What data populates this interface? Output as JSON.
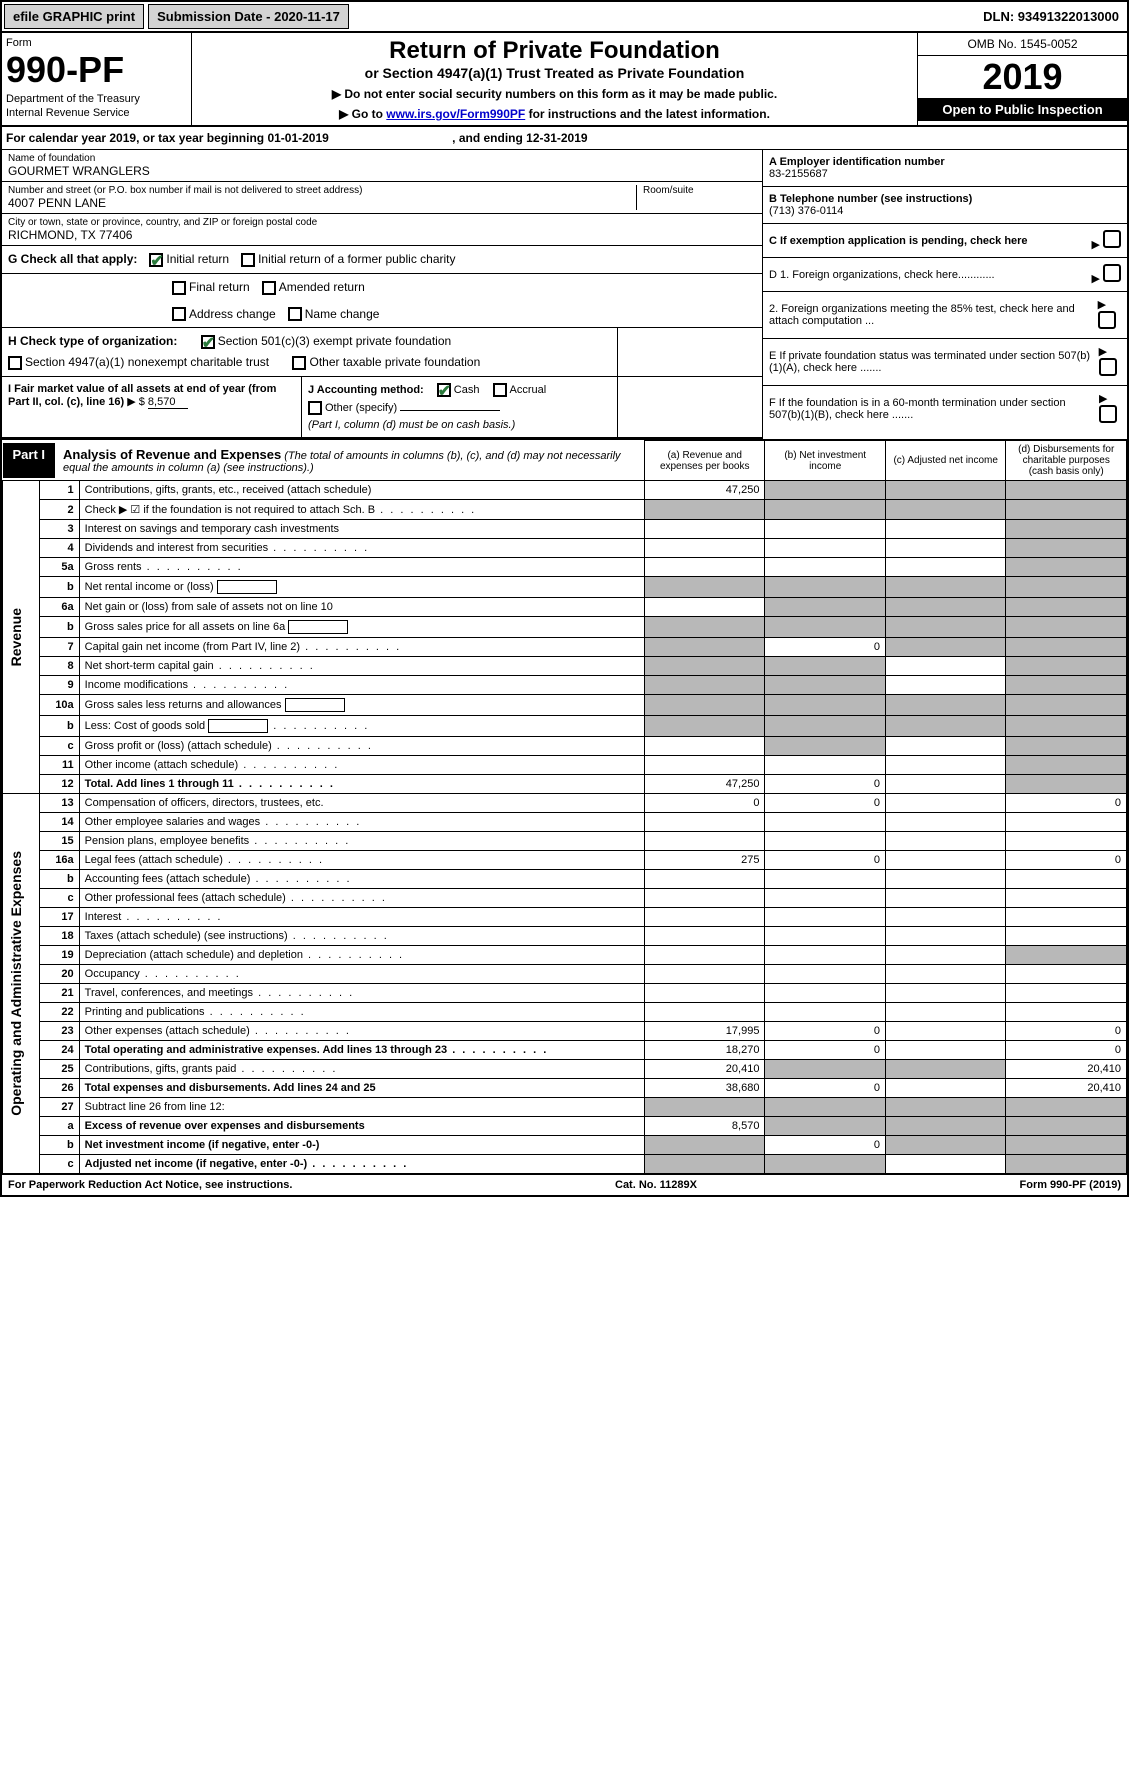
{
  "topbar": {
    "efile": "efile GRAPHIC print",
    "submission": "Submission Date - 2020-11-17",
    "dln": "DLN: 93491322013000"
  },
  "header": {
    "form_label": "Form",
    "form_number": "990-PF",
    "dept1": "Department of the Treasury",
    "dept2": "Internal Revenue Service",
    "title": "Return of Private Foundation",
    "subtitle": "or Section 4947(a)(1) Trust Treated as Private Foundation",
    "note1": "▶ Do not enter social security numbers on this form as it may be made public.",
    "note2_pre": "▶ Go to ",
    "note2_link": "www.irs.gov/Form990PF",
    "note2_post": " for instructions and the latest information.",
    "omb": "OMB No. 1545-0052",
    "year": "2019",
    "open": "Open to Public Inspection"
  },
  "calyear": {
    "text": "For calendar year 2019, or tax year beginning 01-01-2019",
    "ending": ", and ending 12-31-2019"
  },
  "info": {
    "name_label": "Name of foundation",
    "name": "GOURMET WRANGLERS",
    "addr_label": "Number and street (or P.O. box number if mail is not delivered to street address)",
    "addr": "4007 PENN LANE",
    "room_label": "Room/suite",
    "city_label": "City or town, state or province, country, and ZIP or foreign postal code",
    "city": "RICHMOND, TX  77406",
    "a_label": "A Employer identification number",
    "a_val": "83-2155687",
    "b_label": "B Telephone number (see instructions)",
    "b_val": "(713) 376-0114",
    "c_label": "C If exemption application is pending, check here",
    "d1": "D 1. Foreign organizations, check here............",
    "d2": "2. Foreign organizations meeting the 85% test, check here and attach computation ...",
    "e": "E  If private foundation status was terminated under section 507(b)(1)(A), check here .......",
    "f": "F  If the foundation is in a 60-month termination under section 507(b)(1)(B), check here .......",
    "g_label": "G Check all that apply:",
    "g_initial": "Initial return",
    "g_initial_former": "Initial return of a former public charity",
    "g_final": "Final return",
    "g_amended": "Amended return",
    "g_addr": "Address change",
    "g_name": "Name change",
    "h_label": "H Check type of organization:",
    "h_501c3": "Section 501(c)(3) exempt private foundation",
    "h_4947": "Section 4947(a)(1) nonexempt charitable trust",
    "h_other": "Other taxable private foundation",
    "i_label": "I Fair market value of all assets at end of year (from Part II, col. (c), line 16)",
    "i_val": "8,570",
    "j_label": "J Accounting method:",
    "j_cash": "Cash",
    "j_accrual": "Accrual",
    "j_other": "Other (specify)",
    "j_note": "(Part I, column (d) must be on cash basis.)"
  },
  "part1": {
    "badge": "Part I",
    "title": "Analysis of Revenue and Expenses",
    "note": "(The total of amounts in columns (b), (c), and (d) may not necessarily equal the amounts in column (a) (see instructions).)",
    "col_a": "(a)   Revenue and expenses per books",
    "col_b": "(b)  Net investment income",
    "col_c": "(c)  Adjusted net income",
    "col_d": "(d)  Disbursements for charitable purposes (cash basis only)"
  },
  "sides": {
    "revenue": "Revenue",
    "expenses": "Operating and Administrative Expenses"
  },
  "rows": [
    {
      "n": "1",
      "desc": "Contributions, gifts, grants, etc., received (attach schedule)",
      "a": "47,250",
      "b": "",
      "c": "",
      "d": "",
      "shB": true,
      "shC": true,
      "shD": true
    },
    {
      "n": "2",
      "desc": "Check ▶ ☑ if the foundation is not required to attach Sch. B",
      "a": "",
      "b": "",
      "c": "",
      "d": "",
      "shA": true,
      "shB": true,
      "shC": true,
      "shD": true,
      "dots": true
    },
    {
      "n": "3",
      "desc": "Interest on savings and temporary cash investments",
      "a": "",
      "b": "",
      "c": "",
      "d": "",
      "shD": true
    },
    {
      "n": "4",
      "desc": "Dividends and interest from securities",
      "a": "",
      "b": "",
      "c": "",
      "d": "",
      "shD": true,
      "dots": true
    },
    {
      "n": "5a",
      "desc": "Gross rents",
      "a": "",
      "b": "",
      "c": "",
      "d": "",
      "shD": true,
      "dots": true
    },
    {
      "n": "b",
      "desc": "Net rental income or (loss)",
      "a": "",
      "b": "",
      "c": "",
      "d": "",
      "shA": true,
      "shB": true,
      "shC": true,
      "shD": true,
      "inline": true
    },
    {
      "n": "6a",
      "desc": "Net gain or (loss) from sale of assets not on line 10",
      "a": "",
      "b": "",
      "c": "",
      "d": "",
      "shB": true,
      "shC": true,
      "shD": true
    },
    {
      "n": "b",
      "desc": "Gross sales price for all assets on line 6a",
      "a": "",
      "b": "",
      "c": "",
      "d": "",
      "shA": true,
      "shB": true,
      "shC": true,
      "shD": true,
      "inline": true
    },
    {
      "n": "7",
      "desc": "Capital gain net income (from Part IV, line 2)",
      "a": "",
      "b": "0",
      "c": "",
      "d": "",
      "shA": true,
      "shC": true,
      "shD": true,
      "dots": true
    },
    {
      "n": "8",
      "desc": "Net short-term capital gain",
      "a": "",
      "b": "",
      "c": "",
      "d": "",
      "shA": true,
      "shB": true,
      "shD": true,
      "dots": true
    },
    {
      "n": "9",
      "desc": "Income modifications",
      "a": "",
      "b": "",
      "c": "",
      "d": "",
      "shA": true,
      "shB": true,
      "shD": true,
      "dots": true
    },
    {
      "n": "10a",
      "desc": "Gross sales less returns and allowances",
      "a": "",
      "b": "",
      "c": "",
      "d": "",
      "shA": true,
      "shB": true,
      "shC": true,
      "shD": true,
      "inline": true
    },
    {
      "n": "b",
      "desc": "Less: Cost of goods sold",
      "a": "",
      "b": "",
      "c": "",
      "d": "",
      "shA": true,
      "shB": true,
      "shC": true,
      "shD": true,
      "inline": true,
      "dots": true
    },
    {
      "n": "c",
      "desc": "Gross profit or (loss) (attach schedule)",
      "a": "",
      "b": "",
      "c": "",
      "d": "",
      "shB": true,
      "shD": true,
      "dots": true
    },
    {
      "n": "11",
      "desc": "Other income (attach schedule)",
      "a": "",
      "b": "",
      "c": "",
      "d": "",
      "shD": true,
      "dots": true
    },
    {
      "n": "12",
      "desc": "Total. Add lines 1 through 11",
      "a": "47,250",
      "b": "0",
      "c": "",
      "d": "",
      "shD": true,
      "bold": true,
      "dots": true
    },
    {
      "n": "13",
      "desc": "Compensation of officers, directors, trustees, etc.",
      "a": "0",
      "b": "0",
      "c": "",
      "d": "0"
    },
    {
      "n": "14",
      "desc": "Other employee salaries and wages",
      "a": "",
      "b": "",
      "c": "",
      "d": "",
      "dots": true
    },
    {
      "n": "15",
      "desc": "Pension plans, employee benefits",
      "a": "",
      "b": "",
      "c": "",
      "d": "",
      "dots": true
    },
    {
      "n": "16a",
      "desc": "Legal fees (attach schedule)",
      "a": "275",
      "b": "0",
      "c": "",
      "d": "0",
      "dots": true
    },
    {
      "n": "b",
      "desc": "Accounting fees (attach schedule)",
      "a": "",
      "b": "",
      "c": "",
      "d": "",
      "dots": true
    },
    {
      "n": "c",
      "desc": "Other professional fees (attach schedule)",
      "a": "",
      "b": "",
      "c": "",
      "d": "",
      "dots": true
    },
    {
      "n": "17",
      "desc": "Interest",
      "a": "",
      "b": "",
      "c": "",
      "d": "",
      "dots": true
    },
    {
      "n": "18",
      "desc": "Taxes (attach schedule) (see instructions)",
      "a": "",
      "b": "",
      "c": "",
      "d": "",
      "dots": true
    },
    {
      "n": "19",
      "desc": "Depreciation (attach schedule) and depletion",
      "a": "",
      "b": "",
      "c": "",
      "d": "",
      "shD": true,
      "dots": true
    },
    {
      "n": "20",
      "desc": "Occupancy",
      "a": "",
      "b": "",
      "c": "",
      "d": "",
      "dots": true
    },
    {
      "n": "21",
      "desc": "Travel, conferences, and meetings",
      "a": "",
      "b": "",
      "c": "",
      "d": "",
      "dots": true
    },
    {
      "n": "22",
      "desc": "Printing and publications",
      "a": "",
      "b": "",
      "c": "",
      "d": "",
      "dots": true
    },
    {
      "n": "23",
      "desc": "Other expenses (attach schedule)",
      "a": "17,995",
      "b": "0",
      "c": "",
      "d": "0",
      "dots": true
    },
    {
      "n": "24",
      "desc": "Total operating and administrative expenses. Add lines 13 through 23",
      "a": "18,270",
      "b": "0",
      "c": "",
      "d": "0",
      "bold": true,
      "dots": true
    },
    {
      "n": "25",
      "desc": "Contributions, gifts, grants paid",
      "a": "20,410",
      "b": "",
      "c": "",
      "d": "20,410",
      "shB": true,
      "shC": true,
      "dots": true
    },
    {
      "n": "26",
      "desc": "Total expenses and disbursements. Add lines 24 and 25",
      "a": "38,680",
      "b": "0",
      "c": "",
      "d": "20,410",
      "bold": true
    },
    {
      "n": "27",
      "desc": "Subtract line 26 from line 12:",
      "a": "",
      "b": "",
      "c": "",
      "d": "",
      "shA": true,
      "shB": true,
      "shC": true,
      "shD": true
    },
    {
      "n": "a",
      "desc": "Excess of revenue over expenses and disbursements",
      "a": "8,570",
      "b": "",
      "c": "",
      "d": "",
      "shB": true,
      "shC": true,
      "shD": true,
      "bold": true
    },
    {
      "n": "b",
      "desc": "Net investment income (if negative, enter -0-)",
      "a": "",
      "b": "0",
      "c": "",
      "d": "",
      "shA": true,
      "shC": true,
      "shD": true,
      "bold": true
    },
    {
      "n": "c",
      "desc": "Adjusted net income (if negative, enter -0-)",
      "a": "",
      "b": "",
      "c": "",
      "d": "",
      "shA": true,
      "shB": true,
      "shD": true,
      "bold": true,
      "dots": true
    }
  ],
  "footer": {
    "left": "For Paperwork Reduction Act Notice, see instructions.",
    "mid": "Cat. No. 11289X",
    "right": "Form 990-PF (2019)"
  }
}
